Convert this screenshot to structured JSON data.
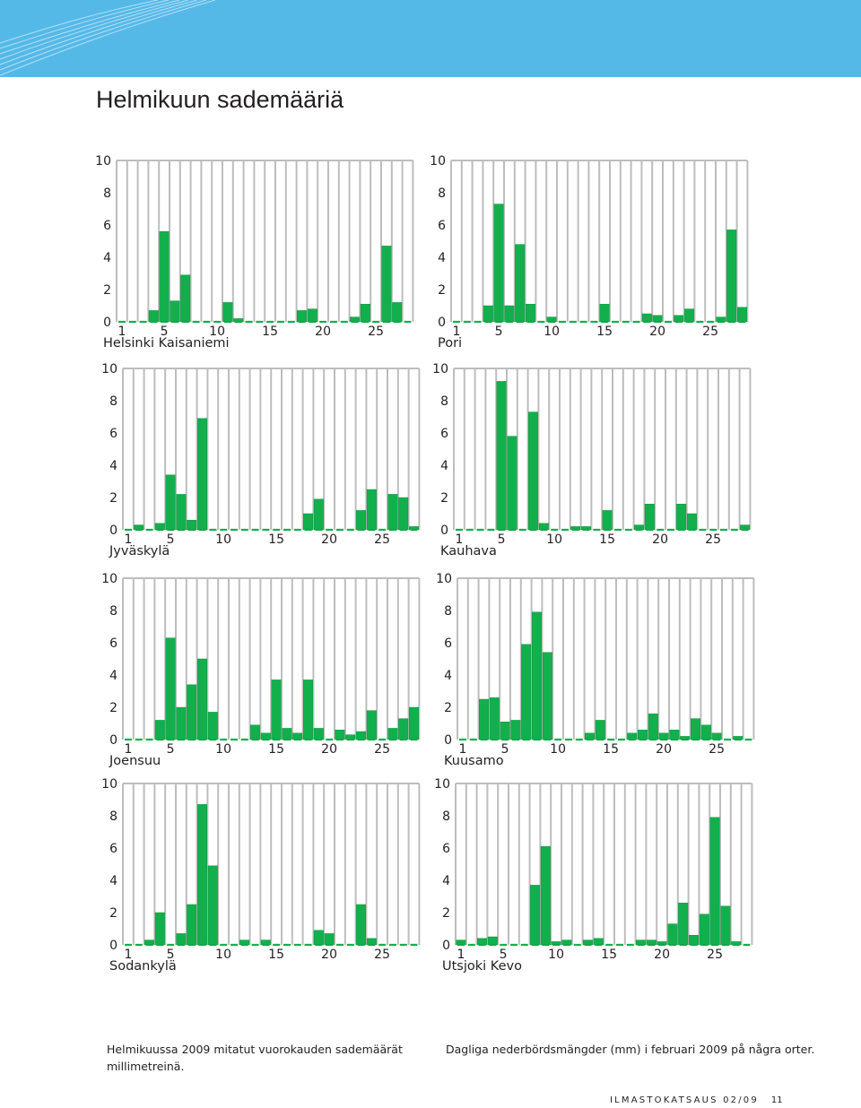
{
  "title": "Helmikuun sademääriä",
  "captions": {
    "fi_line1": "Helmikuussa 2009 mitatut vuorokauden sademäärät",
    "fi_line2": "millimetreinä.",
    "sv": "Dagliga nederbördsmängder (mm) i februari 2009 på några orter."
  },
  "footer": {
    "publication": "ILMASTOKATSAUS 02/09",
    "page": "11"
  },
  "colors": {
    "header": "#55b9e8",
    "bar": "#12b04c",
    "bar_edge": "#0a8a3a",
    "grid": "#bdbdbd",
    "text": "#231f20"
  },
  "chart_data": [
    {
      "type": "bar",
      "title": "Helsinki Kaisaniemi",
      "xlabel": "",
      "ylabel": "",
      "ylim": [
        0,
        10
      ],
      "yticks": [
        "0",
        "2",
        "4",
        "6",
        "8",
        "10"
      ],
      "xticks": [
        {
          "day": 1,
          "label": "1"
        },
        {
          "day": 5,
          "label": "5"
        },
        {
          "day": 10,
          "label": "10"
        },
        {
          "day": 15,
          "label": "15"
        },
        {
          "day": 20,
          "label": "20"
        },
        {
          "day": 25,
          "label": "25"
        }
      ],
      "categories": [
        1,
        2,
        3,
        4,
        5,
        6,
        7,
        8,
        9,
        10,
        11,
        12,
        13,
        14,
        15,
        16,
        17,
        18,
        19,
        20,
        21,
        22,
        23,
        24,
        25,
        26,
        27,
        28
      ],
      "values": [
        0,
        0,
        0,
        0.7,
        5.6,
        1.3,
        2.9,
        0,
        0,
        0,
        1.2,
        0.2,
        0,
        0,
        0,
        0,
        0,
        0.7,
        0.8,
        0,
        0,
        0,
        0.3,
        1.1,
        0,
        4.7,
        1.2,
        0
      ]
    },
    {
      "type": "bar",
      "title": "Pori",
      "xlabel": "",
      "ylabel": "",
      "ylim": [
        0,
        10
      ],
      "yticks": [
        "0",
        "2",
        "4",
        "6",
        "8",
        "10"
      ],
      "xticks": [
        {
          "day": 1,
          "label": "1"
        },
        {
          "day": 5,
          "label": "5"
        },
        {
          "day": 10,
          "label": "10"
        },
        {
          "day": 15,
          "label": "15"
        },
        {
          "day": 20,
          "label": "20"
        },
        {
          "day": 25,
          "label": "25"
        }
      ],
      "categories": [
        1,
        2,
        3,
        4,
        5,
        6,
        7,
        8,
        9,
        10,
        11,
        12,
        13,
        14,
        15,
        16,
        17,
        18,
        19,
        20,
        21,
        22,
        23,
        24,
        25,
        26,
        27,
        28
      ],
      "values": [
        0,
        0,
        0,
        1,
        7.3,
        1,
        4.8,
        1.1,
        0,
        0.3,
        0,
        0,
        0,
        0,
        1.1,
        0,
        0,
        0,
        0.5,
        0.4,
        0,
        0.4,
        0.8,
        0,
        0,
        0.3,
        5.7,
        0.9
      ]
    },
    {
      "type": "bar",
      "title": "Jyväskylä",
      "xlabel": "",
      "ylabel": "",
      "ylim": [
        0,
        10
      ],
      "yticks": [
        "0",
        "2",
        "4",
        "6",
        "8",
        "10"
      ],
      "xticks": [
        {
          "day": 1,
          "label": "1"
        },
        {
          "day": 5,
          "label": "5"
        },
        {
          "day": 10,
          "label": "10"
        },
        {
          "day": 15,
          "label": "15"
        },
        {
          "day": 20,
          "label": "20"
        },
        {
          "day": 25,
          "label": "25"
        }
      ],
      "categories": [
        1,
        2,
        3,
        4,
        5,
        6,
        7,
        8,
        9,
        10,
        11,
        12,
        13,
        14,
        15,
        16,
        17,
        18,
        19,
        20,
        21,
        22,
        23,
        24,
        25,
        26,
        27,
        28
      ],
      "values": [
        0,
        0.3,
        0,
        0.4,
        3.4,
        2.2,
        0.6,
        6.9,
        0,
        0,
        0,
        0,
        0,
        0,
        0,
        0,
        0,
        1,
        1.9,
        0,
        0,
        0,
        1.2,
        2.5,
        0,
        2.2,
        2,
        0.2
      ]
    },
    {
      "type": "bar",
      "title": "Kauhava",
      "xlabel": "",
      "ylabel": "",
      "ylim": [
        0,
        10
      ],
      "yticks": [
        "0",
        "2",
        "4",
        "6",
        "8",
        "10"
      ],
      "xticks": [
        {
          "day": 1,
          "label": "1"
        },
        {
          "day": 5,
          "label": "5"
        },
        {
          "day": 10,
          "label": "10"
        },
        {
          "day": 15,
          "label": "15"
        },
        {
          "day": 20,
          "label": "20"
        },
        {
          "day": 25,
          "label": "25"
        }
      ],
      "categories": [
        1,
        2,
        3,
        4,
        5,
        6,
        7,
        8,
        9,
        10,
        11,
        12,
        13,
        14,
        15,
        16,
        17,
        18,
        19,
        20,
        21,
        22,
        23,
        24,
        25,
        26,
        27,
        28
      ],
      "values": [
        0,
        0,
        0,
        0,
        9.2,
        5.8,
        0,
        7.3,
        0.4,
        0,
        0,
        0.2,
        0.2,
        0,
        1.2,
        0,
        0,
        0.3,
        1.6,
        0,
        0,
        1.6,
        1,
        0,
        0,
        0,
        0,
        0.3
      ]
    },
    {
      "type": "bar",
      "title": "Joensuu",
      "xlabel": "",
      "ylabel": "",
      "ylim": [
        0,
        10
      ],
      "yticks": [
        "0",
        "2",
        "4",
        "6",
        "8",
        "10"
      ],
      "xticks": [
        {
          "day": 1,
          "label": "1"
        },
        {
          "day": 5,
          "label": "5"
        },
        {
          "day": 10,
          "label": "10"
        },
        {
          "day": 15,
          "label": "15"
        },
        {
          "day": 20,
          "label": "20"
        },
        {
          "day": 25,
          "label": "25"
        }
      ],
      "categories": [
        1,
        2,
        3,
        4,
        5,
        6,
        7,
        8,
        9,
        10,
        11,
        12,
        13,
        14,
        15,
        16,
        17,
        18,
        19,
        20,
        21,
        22,
        23,
        24,
        25,
        26,
        27,
        28
      ],
      "values": [
        0,
        0,
        0,
        1.2,
        6.3,
        2,
        3.4,
        5,
        1.7,
        0,
        0,
        0,
        0.9,
        0.4,
        3.7,
        0.7,
        0.4,
        3.7,
        0.7,
        0,
        0.6,
        0.3,
        0.5,
        1.8,
        0,
        0.7,
        1.3,
        2
      ]
    },
    {
      "type": "bar",
      "title": "Kuusamo",
      "xlabel": "",
      "ylabel": "",
      "ylim": [
        0,
        10
      ],
      "yticks": [
        "0",
        "2",
        "4",
        "6",
        "8",
        "10"
      ],
      "xticks": [
        {
          "day": 1,
          "label": "1"
        },
        {
          "day": 5,
          "label": "5"
        },
        {
          "day": 10,
          "label": "10"
        },
        {
          "day": 15,
          "label": "15"
        },
        {
          "day": 20,
          "label": "20"
        },
        {
          "day": 25,
          "label": "25"
        }
      ],
      "categories": [
        1,
        2,
        3,
        4,
        5,
        6,
        7,
        8,
        9,
        10,
        11,
        12,
        13,
        14,
        15,
        16,
        17,
        18,
        19,
        20,
        21,
        22,
        23,
        24,
        25,
        26,
        27,
        28
      ],
      "values": [
        0,
        0,
        2.5,
        2.6,
        1.1,
        1.2,
        5.9,
        7.9,
        5.4,
        0,
        0,
        0,
        0.4,
        1.2,
        0,
        0,
        0.4,
        0.6,
        1.6,
        0.4,
        0.6,
        0.2,
        1.3,
        0.9,
        0.4,
        0,
        0.2,
        0
      ]
    },
    {
      "type": "bar",
      "title": "Sodankylä",
      "xlabel": "",
      "ylabel": "",
      "ylim": [
        0,
        10
      ],
      "yticks": [
        "0",
        "2",
        "4",
        "6",
        "8",
        "10"
      ],
      "xticks": [
        {
          "day": 1,
          "label": "1"
        },
        {
          "day": 5,
          "label": "5"
        },
        {
          "day": 10,
          "label": "10"
        },
        {
          "day": 15,
          "label": "15"
        },
        {
          "day": 20,
          "label": "20"
        },
        {
          "day": 25,
          "label": "25"
        }
      ],
      "categories": [
        1,
        2,
        3,
        4,
        5,
        6,
        7,
        8,
        9,
        10,
        11,
        12,
        13,
        14,
        15,
        16,
        17,
        18,
        19,
        20,
        21,
        22,
        23,
        24,
        25,
        26,
        27,
        28
      ],
      "values": [
        0,
        0,
        0.3,
        2,
        0,
        0.7,
        2.5,
        8.7,
        4.9,
        0,
        0,
        0.3,
        0,
        0.3,
        0,
        0,
        0,
        0,
        0.9,
        0.7,
        0,
        0,
        2.5,
        0.4,
        0,
        0,
        0,
        0
      ]
    },
    {
      "type": "bar",
      "title": "Utsjoki Kevo",
      "xlabel": "",
      "ylabel": "",
      "ylim": [
        0,
        10
      ],
      "yticks": [
        "0",
        "2",
        "4",
        "6",
        "8",
        "10"
      ],
      "xticks": [
        {
          "day": 1,
          "label": "1"
        },
        {
          "day": 5,
          "label": "5"
        },
        {
          "day": 10,
          "label": "10"
        },
        {
          "day": 15,
          "label": "15"
        },
        {
          "day": 20,
          "label": "20"
        },
        {
          "day": 25,
          "label": "25"
        }
      ],
      "categories": [
        1,
        2,
        3,
        4,
        5,
        6,
        7,
        8,
        9,
        10,
        11,
        12,
        13,
        14,
        15,
        16,
        17,
        18,
        19,
        20,
        21,
        22,
        23,
        24,
        25,
        26,
        27,
        28
      ],
      "values": [
        0.3,
        0,
        0.4,
        0.5,
        0,
        0,
        0,
        3.7,
        6.1,
        0.2,
        0.3,
        0,
        0.3,
        0.4,
        0,
        0,
        0,
        0.3,
        0.3,
        0.2,
        1.3,
        2.6,
        0.6,
        1.9,
        7.9,
        2.4,
        0.2,
        0
      ]
    }
  ]
}
